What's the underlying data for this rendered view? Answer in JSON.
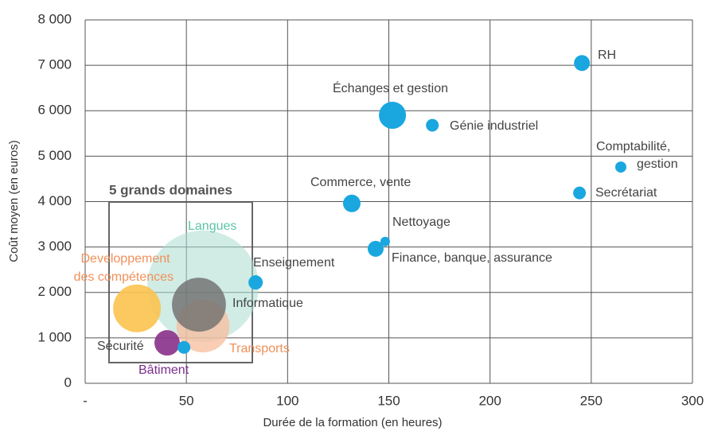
{
  "chart_data": {
    "type": "bubble",
    "xlabel": "Durée de la formation (en heures)",
    "ylabel": "Coût moyen (en euros)",
    "xlim": [
      0,
      300
    ],
    "ylim": [
      0,
      8000
    ],
    "xticks": [
      {
        "value": 0,
        "label": "-"
      },
      50,
      100,
      150,
      200,
      250,
      300
    ],
    "yticks": [
      0,
      {
        "value": 1000,
        "label": "1 000"
      },
      {
        "value": 2000,
        "label": "2 000"
      },
      {
        "value": 3000,
        "label": "3 000"
      },
      {
        "value": 4000,
        "label": "4 000"
      },
      {
        "value": 5000,
        "label": "5 000"
      },
      {
        "value": 6000,
        "label": "6 000"
      },
      {
        "value": 7000,
        "label": "7 000"
      },
      {
        "value": 8000,
        "label": "8 000"
      }
    ],
    "grid": true,
    "annotation": "5 grands domaines",
    "labels": [
      "Langues",
      "Developpement des compétences",
      "Transports",
      "Informatique",
      "Bâtiment",
      "Sécurité",
      "RH",
      "Échanges et gestion",
      "Génie industriel",
      "Comptabilité, gestion",
      "Secrétariat",
      "Commerce, vente",
      "Nettoyage",
      "Finance, banque, assurance",
      "Enseignement"
    ],
    "x": [
      58.2,
      25.6,
      58.2,
      56.2,
      40.5,
      48.8,
      245.4,
      151.8,
      171.5,
      264.6,
      244.2,
      131.7,
      148.2,
      143.5,
      84.2
    ],
    "y": [
      2140,
      1650,
      1260,
      1730,
      890,
      790,
      7050,
      5900,
      5680,
      4760,
      4190,
      3960,
      3120,
      2960,
      2220
    ],
    "sizes": [
      4900,
      900,
      1100,
      1150,
      256,
      64,
      100,
      290,
      64,
      49,
      64,
      121,
      36,
      100,
      81
    ],
    "colors": [
      "#a9ddd0",
      "#fbc34f",
      "#f8bc9c",
      "#6e6e6e",
      "#8e3a8e",
      "#1aa7e0",
      "#1aa7e0",
      "#1aa7e0",
      "#1aa7e0",
      "#1aa7e0",
      "#1aa7e0",
      "#1aa7e0",
      "#1aa7e0",
      "#1aa7e0",
      "#1aa7e0"
    ],
    "label_colors": [
      "#5cc4a6",
      "#f0915a",
      "#f0915a",
      "#444444",
      "#7b2d8e",
      "#444444",
      "#444444",
      "#444444",
      "#444444",
      "#444444",
      "#444444",
      "#444444",
      "#444444",
      "#444444",
      "#444444"
    ]
  }
}
